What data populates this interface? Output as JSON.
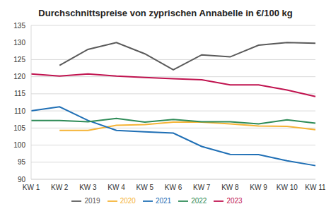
{
  "chart_data": {
    "type": "line",
    "title": "Durchschnittspreise von zyprischen Annabelle in €/100 kg",
    "categories": [
      "KW 1",
      "KW 2",
      "KW 3",
      "KW 4",
      "KW 5",
      "KW 6",
      "KW 7",
      "KW 8",
      "KW 9",
      "KW 10",
      "KW 11"
    ],
    "series": [
      {
        "name": "2019",
        "color": "#5a5a5a",
        "values": [
          null,
          123.3,
          128,
          130,
          126.7,
          122,
          126.4,
          125.8,
          129.2,
          130,
          129.8
        ]
      },
      {
        "name": "2020",
        "color": "#f5b335",
        "values": [
          null,
          104.3,
          104.3,
          105.8,
          106,
          106.7,
          106.7,
          106.2,
          105.6,
          105.5,
          104.5
        ]
      },
      {
        "name": "2021",
        "color": "#1f6fb5",
        "values": [
          110,
          111.2,
          107.2,
          104.3,
          103.9,
          103.5,
          99.6,
          97.3,
          97.2,
          95.4,
          94
        ]
      },
      {
        "name": "2022",
        "color": "#2e8b57",
        "values": [
          107.2,
          107.2,
          106.8,
          107.8,
          106.7,
          107.5,
          106.8,
          106.8,
          106.2,
          107.4,
          106.4
        ]
      },
      {
        "name": "2023",
        "color": "#c0134f",
        "values": [
          120.8,
          120.2,
          120.8,
          120.2,
          119.8,
          119.4,
          119.1,
          117.6,
          117.6,
          116.1,
          114.2
        ]
      }
    ],
    "ylim": [
      90,
      135
    ],
    "yticks": [
      90,
      95,
      100,
      105,
      110,
      115,
      120,
      125,
      130,
      135
    ],
    "grid": true,
    "legend": "bottom"
  }
}
